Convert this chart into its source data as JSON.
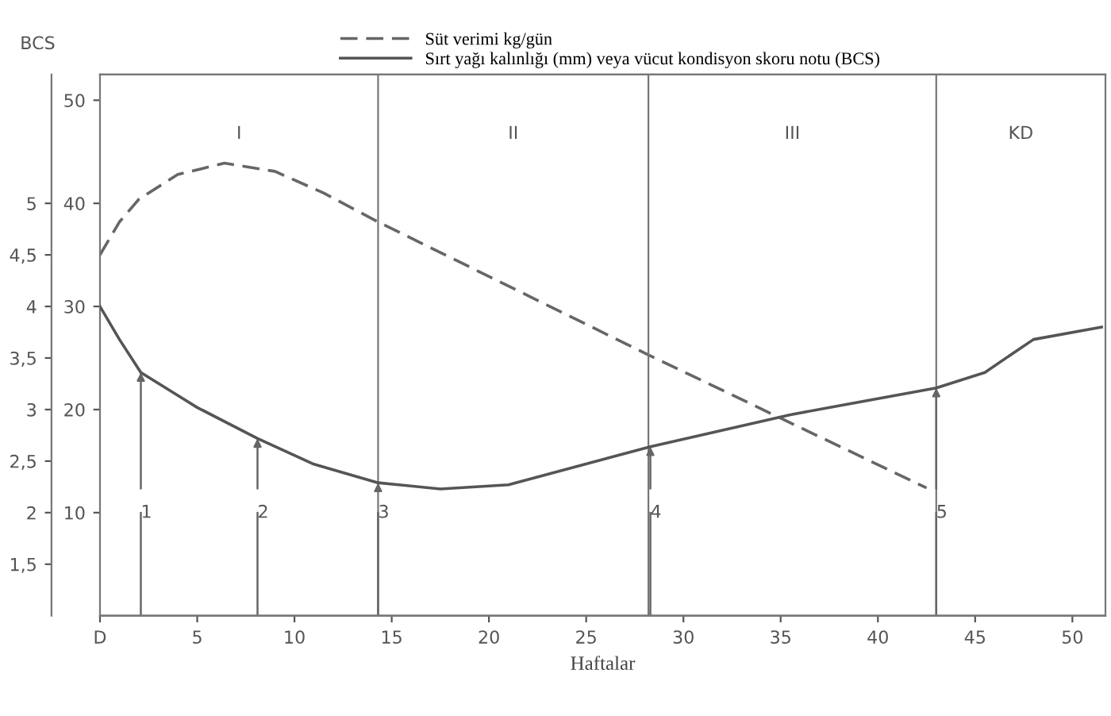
{
  "chart_data": {
    "type": "line",
    "xlabel": "Haftalar",
    "y2label": "BCS",
    "xlim": [
      0,
      51.7
    ],
    "xticks": [
      {
        "value": 0,
        "label": "D"
      },
      5,
      10,
      15,
      20,
      25,
      30,
      35,
      40,
      45,
      50
    ],
    "ylim": [
      0,
      52.5
    ],
    "yticks": [
      10,
      20,
      30,
      40,
      50
    ],
    "y2lim": [
      1,
      6.25
    ],
    "y2ticks": [
      {
        "value": 1.5,
        "label": "1,5"
      },
      2,
      {
        "value": 2.5,
        "label": "2,5"
      },
      3,
      {
        "value": 3.5,
        "label": "3,5"
      },
      4,
      {
        "value": 4.5,
        "label": "4,5"
      },
      5
    ],
    "series": [
      {
        "name": "Süt verimi kg/gün",
        "color": "#666666",
        "line_style": "dashed",
        "x": [
          0,
          1,
          2,
          4,
          6.4,
          9,
          11.5,
          14.3,
          28.2,
          42.5
        ],
        "values": [
          35,
          38.2,
          40.4,
          42.8,
          43.9,
          43.1,
          41,
          38.2,
          25.3,
          12.4
        ]
      },
      {
        "name": "Sırt yağı kalınlığı (mm) veya vücut kondisyon skoru notu (BCS)",
        "color": "#555555",
        "line_style": "solid",
        "axis": "y2",
        "x": [
          0,
          1,
          2.1,
          5,
          8.1,
          11,
          14.3,
          17.5,
          21,
          28.3,
          35.5,
          43,
          45.5,
          48,
          51.5
        ],
        "values": [
          4.0,
          3.68,
          3.36,
          3.02,
          2.72,
          2.47,
          2.29,
          2.23,
          2.27,
          2.64,
          2.95,
          3.21,
          3.36,
          3.68,
          3.8
        ]
      }
    ],
    "ref_lines": [
      {
        "axis": "x",
        "value": 14.3
      },
      {
        "axis": "x",
        "value": 28.2
      },
      {
        "axis": "x",
        "value": 43
      }
    ],
    "annotations": [
      "I",
      "II",
      "III",
      "KD",
      {
        "text": "1",
        "x": 2.1,
        "y": 23.6
      },
      {
        "text": "2",
        "x": 8.1,
        "y": 17.2
      },
      {
        "text": "3",
        "x": 14.3,
        "y": 12.9
      },
      {
        "text": "4",
        "x": 28.3,
        "y": 16.4
      },
      {
        "text": "5",
        "x": 43,
        "y": 22.1
      }
    ],
    "legend": "top",
    "grid": false,
    "marker": "none"
  }
}
